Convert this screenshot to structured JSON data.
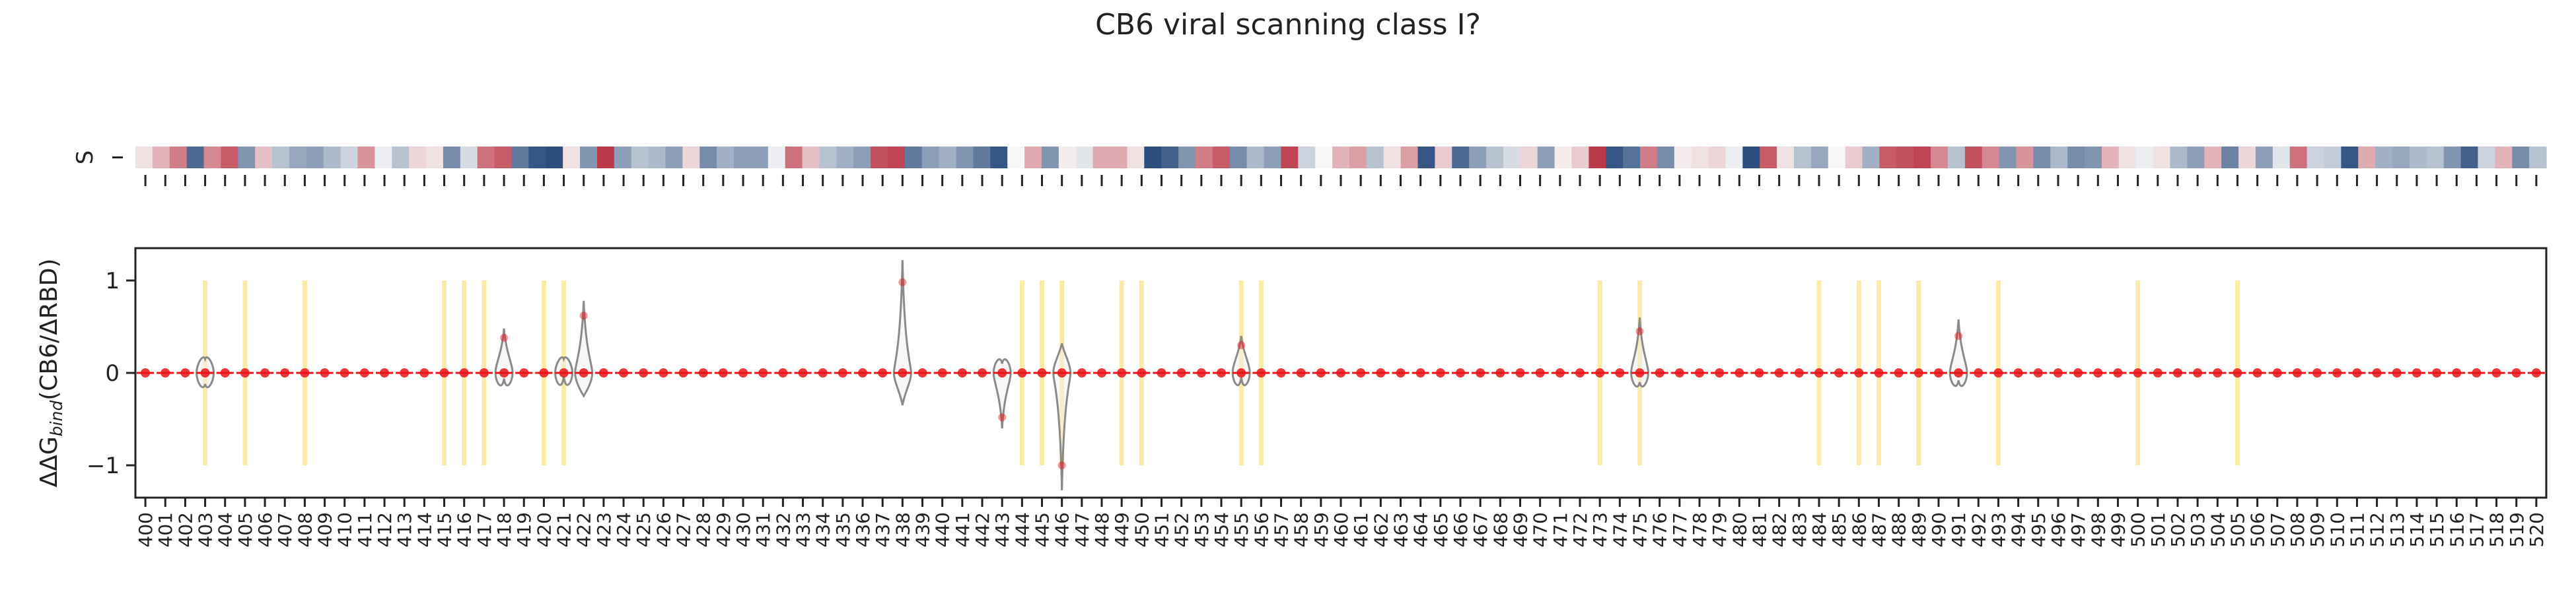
{
  "chart_data": [
    {
      "type": "heatmap",
      "title": "CB6 viral scanning class I?",
      "ytick_labels": [
        "S"
      ],
      "colormap": "RdBu_r",
      "x_tick_labels": [],
      "values": [
        0.1,
        0.3,
        0.55,
        -0.8,
        0.5,
        0.7,
        -0.55,
        0.25,
        -0.3,
        -0.45,
        -0.5,
        -0.35,
        -0.2,
        0.45,
        -0.05,
        -0.3,
        0.15,
        0.1,
        -0.6,
        -0.15,
        0.6,
        0.7,
        -0.7,
        -0.9,
        -0.95,
        0.1,
        -0.55,
        0.85,
        -0.5,
        -0.3,
        -0.35,
        -0.5,
        0.15,
        -0.6,
        -0.4,
        -0.5,
        -0.5,
        -0.05,
        0.6,
        0.25,
        -0.3,
        -0.4,
        -0.5,
        0.75,
        0.8,
        -0.7,
        -0.5,
        -0.4,
        -0.55,
        -0.7,
        -0.9,
        0.0,
        0.35,
        -0.55,
        0.05,
        -0.1,
        0.35,
        0.35,
        0.1,
        -0.95,
        -0.85,
        -0.55,
        0.55,
        0.7,
        -0.6,
        -0.35,
        -0.5,
        0.8,
        -0.2,
        0.0,
        0.3,
        0.4,
        -0.3,
        0.1,
        0.4,
        -0.9,
        0.2,
        -0.8,
        -0.5,
        -0.3,
        -0.15,
        0.15,
        -0.5,
        0.05,
        0.2,
        0.85,
        -0.9,
        -0.75,
        0.55,
        -0.6,
        0.05,
        0.1,
        0.15,
        -0.05,
        -0.95,
        0.7,
        0.1,
        -0.3,
        -0.45,
        0.0,
        0.2,
        -0.4,
        0.7,
        0.75,
        0.8,
        0.5,
        -0.3,
        0.75,
        0.5,
        -0.55,
        0.45,
        -0.6,
        -0.35,
        -0.6,
        -0.55,
        0.3,
        0.1,
        -0.05,
        0.1,
        -0.35,
        -0.5,
        0.3,
        -0.65,
        0.15,
        -0.5,
        -0.1,
        0.6,
        -0.2,
        -0.25,
        -0.9,
        0.35,
        -0.4,
        -0.45,
        -0.35,
        -0.3,
        -0.55,
        -0.85,
        -0.2,
        0.3,
        -0.6,
        -0.3
      ]
    },
    {
      "type": "violin",
      "ylabel_prefix": "ΔΔG",
      "ylabel_sub": "bind",
      "ylabel_suffix": "(CB6/ΔRBD)",
      "ylim": [
        -1.35,
        1.35
      ],
      "yticks": [
        1,
        0,
        -1
      ],
      "x": [
        400,
        401,
        402,
        403,
        404,
        405,
        406,
        407,
        408,
        409,
        410,
        411,
        412,
        413,
        414,
        415,
        416,
        417,
        418,
        419,
        420,
        421,
        422,
        423,
        424,
        425,
        426,
        427,
        428,
        429,
        430,
        431,
        432,
        433,
        434,
        435,
        436,
        437,
        438,
        439,
        440,
        441,
        442,
        443,
        444,
        445,
        446,
        447,
        448,
        449,
        450,
        451,
        452,
        453,
        454,
        455,
        456,
        457,
        458,
        459,
        460,
        461,
        462,
        463,
        464,
        465,
        466,
        467,
        468,
        469,
        470,
        471,
        472,
        473,
        474,
        475,
        476,
        477,
        478,
        479,
        480,
        481,
        482,
        483,
        484,
        485,
        486,
        487,
        488,
        489,
        490,
        491,
        492,
        493,
        494,
        495,
        496,
        497,
        498,
        499,
        500,
        501,
        502,
        503,
        504,
        505,
        506,
        507,
        508,
        509,
        510,
        511,
        512,
        513,
        514,
        515,
        516,
        517,
        518,
        519,
        520
      ],
      "highlight_positions": [
        403,
        405,
        408,
        415,
        416,
        417,
        420,
        421,
        444,
        445,
        446,
        449,
        450,
        455,
        456,
        473,
        475,
        484,
        486,
        487,
        489,
        493,
        500,
        505
      ],
      "highlight_range": [
        -1,
        1
      ],
      "violins": [
        {
          "pos": 403,
          "min": -0.12,
          "max": 0.15
        },
        {
          "pos": 418,
          "min": -0.06,
          "max": 0.48
        },
        {
          "pos": 421,
          "min": -0.04,
          "max": 0.15
        },
        {
          "pos": 422,
          "min": -0.25,
          "max": 0.78
        },
        {
          "pos": 438,
          "min": -0.35,
          "max": 1.22
        },
        {
          "pos": 443,
          "min": -0.6,
          "max": 0.1
        },
        {
          "pos": 446,
          "min": -1.27,
          "max": 0.32
        },
        {
          "pos": 455,
          "min": -0.05,
          "max": 0.4
        },
        {
          "pos": 475,
          "min": -0.1,
          "max": 0.6
        },
        {
          "pos": 491,
          "min": -0.08,
          "max": 0.58
        }
      ],
      "outliers": [
        {
          "x": 418,
          "y": 0.38
        },
        {
          "x": 422,
          "y": 0.62
        },
        {
          "x": 438,
          "y": 0.98
        },
        {
          "x": 443,
          "y": -0.48
        },
        {
          "x": 446,
          "y": -1.0
        },
        {
          "x": 455,
          "y": 0.3
        },
        {
          "x": 475,
          "y": 0.45
        },
        {
          "x": 491,
          "y": 0.4
        }
      ],
      "colors": {
        "points": "#e8141a",
        "violin_edge": "#8a8a8a",
        "highlight": "#fbe9a0",
        "frame": "#222222"
      }
    }
  ]
}
